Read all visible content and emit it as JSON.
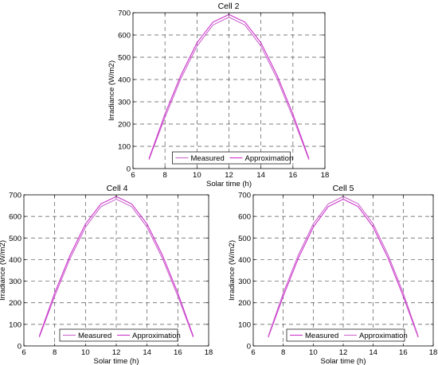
{
  "chart_data": [
    {
      "type": "line",
      "title": "Cell 2",
      "xlabel": "Solar time (h)",
      "ylabel": "Irradiance (W/m2)",
      "xlim": [
        6,
        18
      ],
      "ylim": [
        0,
        700
      ],
      "xticks": [
        6,
        8,
        10,
        12,
        14,
        16,
        18
      ],
      "yticks": [
        0,
        100,
        200,
        300,
        400,
        500,
        600,
        700
      ],
      "grid": true,
      "legend_position": "bottom-center",
      "series": [
        {
          "name": "Measured",
          "color": "#cc66cc",
          "x": [
            7,
            8,
            9,
            10,
            11,
            12,
            13,
            14,
            15,
            16,
            17
          ],
          "y": [
            40,
            230,
            405,
            550,
            645,
            680,
            645,
            550,
            405,
            230,
            40
          ]
        },
        {
          "name": "Approximation",
          "color": "#cc33cc",
          "x": [
            7,
            8,
            9,
            10,
            11,
            12,
            13,
            14,
            15,
            16,
            17
          ],
          "y": [
            45,
            245,
            420,
            565,
            658,
            692,
            658,
            565,
            420,
            245,
            45
          ]
        }
      ]
    },
    {
      "type": "line",
      "title": "Cell 4",
      "xlabel": "Solar time (h)",
      "ylabel": "Irradiance (W/m2)",
      "xlim": [
        6,
        18
      ],
      "ylim": [
        0,
        700
      ],
      "xticks": [
        6,
        8,
        10,
        12,
        14,
        16,
        18
      ],
      "yticks": [
        0,
        100,
        200,
        300,
        400,
        500,
        600,
        700
      ],
      "grid": true,
      "legend_position": "bottom-center",
      "series": [
        {
          "name": "Measured",
          "color": "#cc66cc",
          "x": [
            7,
            8,
            9,
            10,
            11,
            12,
            13,
            14,
            15,
            16,
            17
          ],
          "y": [
            40,
            230,
            405,
            550,
            645,
            680,
            645,
            550,
            405,
            230,
            40
          ]
        },
        {
          "name": "Approximation",
          "color": "#cc33cc",
          "x": [
            7,
            8,
            9,
            10,
            11,
            12,
            13,
            14,
            15,
            16,
            17
          ],
          "y": [
            45,
            245,
            420,
            565,
            658,
            692,
            658,
            565,
            420,
            245,
            45
          ]
        }
      ]
    },
    {
      "type": "line",
      "title": "Cell 5",
      "xlabel": "Solar time (h)",
      "ylabel": "Irradiance (W/m2)",
      "xlim": [
        6,
        18
      ],
      "ylim": [
        0,
        700
      ],
      "xticks": [
        6,
        8,
        10,
        12,
        14,
        16,
        18
      ],
      "yticks": [
        0,
        100,
        200,
        300,
        400,
        500,
        600,
        700
      ],
      "grid": true,
      "legend_position": "bottom-center",
      "series": [
        {
          "name": "Measured",
          "color": "#cc33cc",
          "x": [
            7,
            8,
            9,
            10,
            11,
            12,
            13,
            14,
            15,
            16,
            17
          ],
          "y": [
            40,
            230,
            405,
            550,
            645,
            680,
            645,
            550,
            405,
            230,
            40
          ]
        },
        {
          "name": "Approximation",
          "color": "#cc66cc",
          "x": [
            7,
            8,
            9,
            10,
            11,
            12,
            13,
            14,
            15,
            16,
            17
          ],
          "y": [
            45,
            245,
            420,
            565,
            658,
            692,
            658,
            565,
            420,
            245,
            45
          ]
        }
      ]
    }
  ]
}
